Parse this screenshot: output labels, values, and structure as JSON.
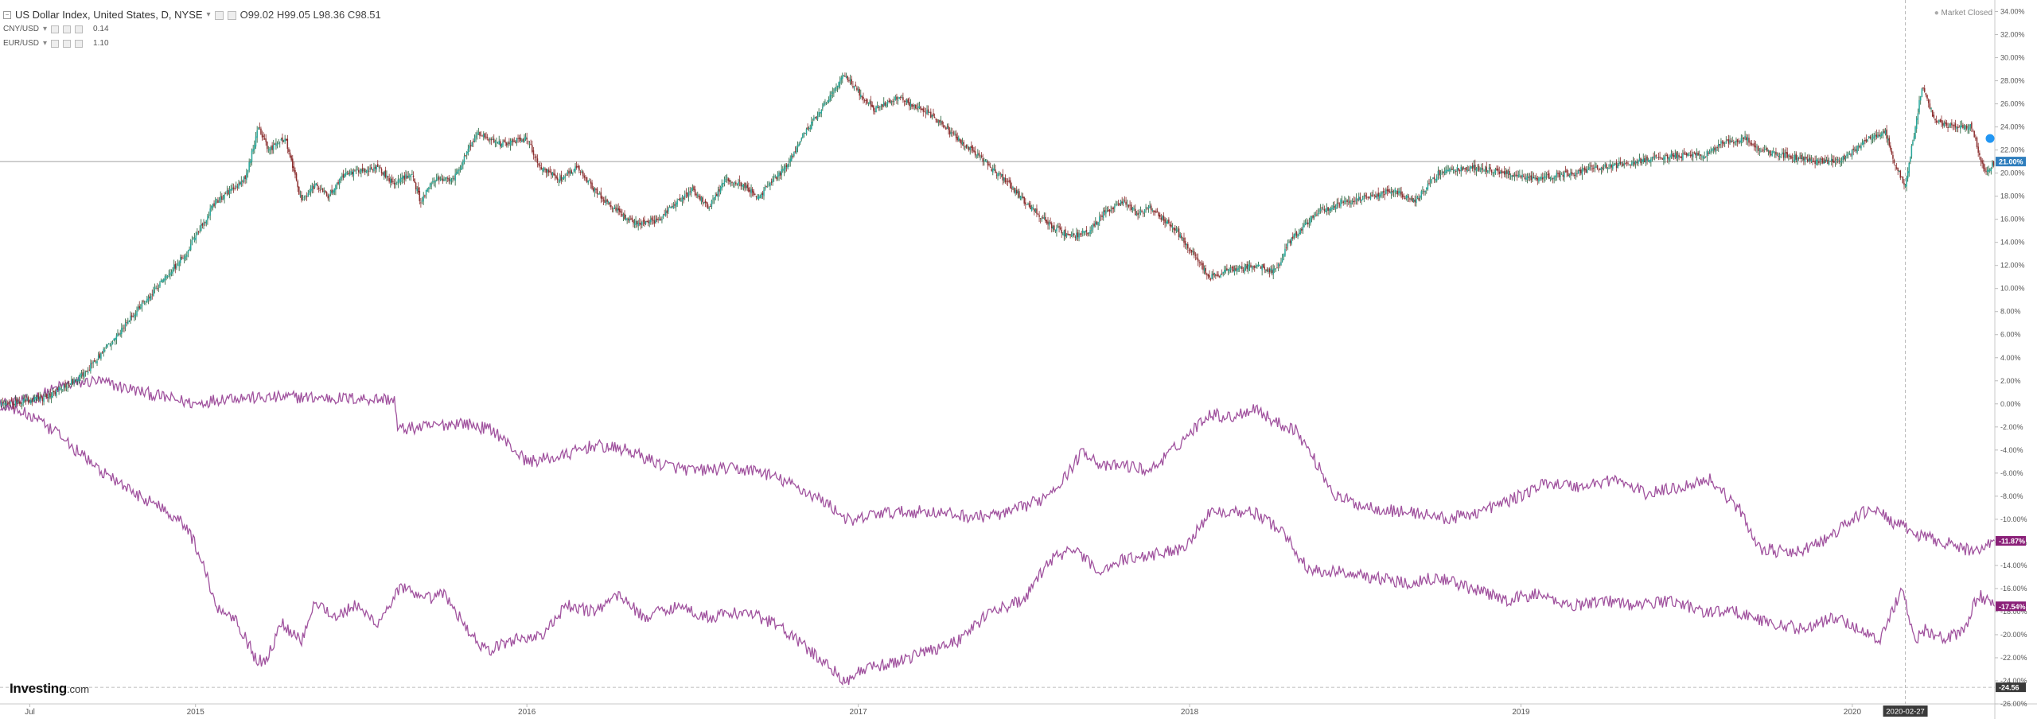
{
  "header": {
    "main_title": "US Dollar Index, United States, D, NYSE",
    "ohlc": [
      {
        "label": "O",
        "value": "99.02"
      },
      {
        "label": "H",
        "value": "99.05"
      },
      {
        "label": "L",
        "value": "98.36"
      },
      {
        "label": "C",
        "value": "98.51"
      }
    ],
    "comparisons": [
      {
        "symbol": "CNY/USD",
        "value": "0.14"
      },
      {
        "symbol": "EUR/USD",
        "value": "1.10"
      }
    ],
    "market_status": "Market Closed"
  },
  "logo": {
    "brand": "Investing",
    "suffix": ".com"
  },
  "colors": {
    "candle_up": "#26a69a",
    "candle_up_dark": "#1f5e36",
    "candle_down": "#8b2e2e",
    "compare_line": "#a0529e",
    "price_line": "#808080",
    "current_label_bg": "#2f7ebd",
    "compare_label_bg": "#8a1f78",
    "crosshair_label_bg": "#3a3a3a",
    "axis_text": "#555555"
  },
  "chart_data": {
    "type": "line",
    "title": "US Dollar Index, United States, D, NYSE",
    "y_unit": "percent change",
    "ylim": [
      -26,
      35
    ],
    "y_ticks": [
      "34.00%",
      "32.00%",
      "30.00%",
      "28.00%",
      "26.00%",
      "24.00%",
      "22.00%",
      "20.00%",
      "18.00%",
      "16.00%",
      "14.00%",
      "12.00%",
      "10.00%",
      "8.00%",
      "6.00%",
      "4.00%",
      "2.00%",
      "0.00%",
      "-2.00%",
      "-4.00%",
      "-6.00%",
      "-8.00%",
      "-10.00%",
      "-12.00%",
      "-14.00%",
      "-16.00%",
      "-18.00%",
      "-20.00%",
      "-22.00%",
      "-24.00%",
      "-26.00%"
    ],
    "x_labels": [
      {
        "label": "Jul",
        "t": 2014.5
      },
      {
        "label": "2015",
        "t": 2015.0
      },
      {
        "label": "2016",
        "t": 2016.0
      },
      {
        "label": "2017",
        "t": 2017.0
      },
      {
        "label": "2018",
        "t": 2018.0
      },
      {
        "label": "2019",
        "t": 2019.0
      },
      {
        "label": "2020",
        "t": 2020.0
      }
    ],
    "x_range": [
      2014.41,
      2020.43
    ],
    "crosshair": {
      "date_label": "2020-02-27",
      "t": 2020.16,
      "value_label": "-24.56",
      "value": -24.56
    },
    "series": [
      {
        "name": "US Dollar Index",
        "style": "candlestick",
        "last_label": "21.00%",
        "last_value": 21.0,
        "points": [
          [
            2014.41,
            0.0
          ],
          [
            2014.55,
            0.5
          ],
          [
            2014.66,
            2.5
          ],
          [
            2014.75,
            5.5
          ],
          [
            2014.85,
            9.0
          ],
          [
            2014.97,
            13.0
          ],
          [
            2015.06,
            17.5
          ],
          [
            2015.15,
            19.5
          ],
          [
            2015.19,
            24.0
          ],
          [
            2015.22,
            22.0
          ],
          [
            2015.27,
            23.0
          ],
          [
            2015.32,
            17.5
          ],
          [
            2015.36,
            19.0
          ],
          [
            2015.4,
            18.0
          ],
          [
            2015.45,
            20.0
          ],
          [
            2015.55,
            20.5
          ],
          [
            2015.6,
            19.0
          ],
          [
            2015.65,
            20.0
          ],
          [
            2015.68,
            17.5
          ],
          [
            2015.72,
            19.5
          ],
          [
            2015.78,
            19.5
          ],
          [
            2015.85,
            23.5
          ],
          [
            2015.92,
            22.5
          ],
          [
            2016.0,
            23.0
          ],
          [
            2016.04,
            20.5
          ],
          [
            2016.1,
            19.5
          ],
          [
            2016.15,
            20.5
          ],
          [
            2016.22,
            18.0
          ],
          [
            2016.28,
            16.5
          ],
          [
            2016.34,
            15.5
          ],
          [
            2016.4,
            16.0
          ],
          [
            2016.45,
            17.5
          ],
          [
            2016.5,
            18.5
          ],
          [
            2016.55,
            17.0
          ],
          [
            2016.6,
            19.5
          ],
          [
            2016.65,
            19.0
          ],
          [
            2016.7,
            18.0
          ],
          [
            2016.78,
            20.5
          ],
          [
            2016.84,
            23.5
          ],
          [
            2016.9,
            26.0
          ],
          [
            2016.96,
            28.5
          ],
          [
            2017.0,
            27.0
          ],
          [
            2017.05,
            25.5
          ],
          [
            2017.12,
            26.5
          ],
          [
            2017.2,
            25.5
          ],
          [
            2017.28,
            23.5
          ],
          [
            2017.38,
            21.0
          ],
          [
            2017.44,
            19.5
          ],
          [
            2017.52,
            17.0
          ],
          [
            2017.58,
            15.5
          ],
          [
            2017.64,
            14.5
          ],
          [
            2017.7,
            15.0
          ],
          [
            2017.74,
            16.5
          ],
          [
            2017.8,
            17.5
          ],
          [
            2017.84,
            16.5
          ],
          [
            2017.88,
            17.0
          ],
          [
            2017.96,
            15.0
          ],
          [
            2018.06,
            11.0
          ],
          [
            2018.12,
            11.5
          ],
          [
            2018.2,
            12.0
          ],
          [
            2018.26,
            11.5
          ],
          [
            2018.3,
            14.0
          ],
          [
            2018.38,
            16.5
          ],
          [
            2018.46,
            17.5
          ],
          [
            2018.55,
            18.0
          ],
          [
            2018.62,
            18.5
          ],
          [
            2018.68,
            17.5
          ],
          [
            2018.75,
            20.0
          ],
          [
            2018.85,
            20.5
          ],
          [
            2018.95,
            20.0
          ],
          [
            2019.05,
            19.5
          ],
          [
            2019.15,
            20.0
          ],
          [
            2019.25,
            20.5
          ],
          [
            2019.35,
            21.0
          ],
          [
            2019.45,
            21.5
          ],
          [
            2019.55,
            21.5
          ],
          [
            2019.6,
            22.5
          ],
          [
            2019.68,
            23.0
          ],
          [
            2019.72,
            22.0
          ],
          [
            2019.8,
            21.5
          ],
          [
            2019.88,
            21.0
          ],
          [
            2019.96,
            21.0
          ],
          [
            2020.05,
            23.0
          ],
          [
            2020.1,
            23.5
          ],
          [
            2020.13,
            20.5
          ],
          [
            2020.16,
            19.0
          ],
          [
            2020.19,
            24.0
          ],
          [
            2020.21,
            27.5
          ],
          [
            2020.25,
            24.5
          ],
          [
            2020.3,
            24.0
          ],
          [
            2020.36,
            24.0
          ],
          [
            2020.4,
            20.0
          ],
          [
            2020.43,
            21.0
          ]
        ]
      },
      {
        "name": "CNY/USD",
        "style": "line",
        "last_label": "-11.87%",
        "last_value": -11.87,
        "points": [
          [
            2014.41,
            0.0
          ],
          [
            2014.5,
            0.3
          ],
          [
            2014.6,
            1.6
          ],
          [
            2014.7,
            2.0
          ],
          [
            2014.8,
            1.3
          ],
          [
            2014.9,
            0.6
          ],
          [
            2015.0,
            0.0
          ],
          [
            2015.1,
            0.6
          ],
          [
            2015.2,
            0.5
          ],
          [
            2015.3,
            0.6
          ],
          [
            2015.4,
            0.5
          ],
          [
            2015.6,
            0.4
          ],
          [
            2015.61,
            -2.2
          ],
          [
            2015.7,
            -2.0
          ],
          [
            2015.8,
            -1.6
          ],
          [
            2015.9,
            -2.3
          ],
          [
            2016.0,
            -5.0
          ],
          [
            2016.1,
            -4.6
          ],
          [
            2016.2,
            -3.6
          ],
          [
            2016.3,
            -4.0
          ],
          [
            2016.4,
            -5.2
          ],
          [
            2016.5,
            -5.8
          ],
          [
            2016.6,
            -5.6
          ],
          [
            2016.7,
            -5.8
          ],
          [
            2016.8,
            -7.0
          ],
          [
            2016.9,
            -8.5
          ],
          [
            2016.98,
            -10.3
          ],
          [
            2017.05,
            -9.5
          ],
          [
            2017.2,
            -9.3
          ],
          [
            2017.35,
            -9.8
          ],
          [
            2017.45,
            -9.5
          ],
          [
            2017.55,
            -8.3
          ],
          [
            2017.62,
            -6.5
          ],
          [
            2017.68,
            -4.0
          ],
          [
            2017.74,
            -5.5
          ],
          [
            2017.8,
            -5.3
          ],
          [
            2017.88,
            -5.8
          ],
          [
            2017.95,
            -4.0
          ],
          [
            2018.06,
            -0.8
          ],
          [
            2018.12,
            -1.2
          ],
          [
            2018.2,
            -0.3
          ],
          [
            2018.25,
            -1.5
          ],
          [
            2018.32,
            -2.2
          ],
          [
            2018.38,
            -5.0
          ],
          [
            2018.44,
            -8.0
          ],
          [
            2018.52,
            -8.8
          ],
          [
            2018.62,
            -9.3
          ],
          [
            2018.7,
            -9.5
          ],
          [
            2018.78,
            -10.0
          ],
          [
            2018.88,
            -9.3
          ],
          [
            2018.98,
            -8.2
          ],
          [
            2019.08,
            -6.8
          ],
          [
            2019.18,
            -7.2
          ],
          [
            2019.28,
            -6.5
          ],
          [
            2019.38,
            -7.8
          ],
          [
            2019.48,
            -7.2
          ],
          [
            2019.57,
            -6.5
          ],
          [
            2019.66,
            -9.2
          ],
          [
            2019.72,
            -12.5
          ],
          [
            2019.82,
            -13.0
          ],
          [
            2019.92,
            -11.8
          ],
          [
            2020.0,
            -10.0
          ],
          [
            2020.06,
            -9.0
          ],
          [
            2020.12,
            -10.2
          ],
          [
            2020.2,
            -11.4
          ],
          [
            2020.28,
            -12.0
          ],
          [
            2020.36,
            -12.8
          ],
          [
            2020.43,
            -11.87
          ]
        ]
      },
      {
        "name": "EUR/USD",
        "style": "line",
        "last_label": "-17.54%",
        "last_value": -17.54,
        "points": [
          [
            2014.41,
            0.0
          ],
          [
            2014.5,
            -1.0
          ],
          [
            2014.6,
            -3.0
          ],
          [
            2014.7,
            -5.5
          ],
          [
            2014.8,
            -7.5
          ],
          [
            2014.9,
            -9.0
          ],
          [
            2014.97,
            -10.5
          ],
          [
            2015.02,
            -13.5
          ],
          [
            2015.06,
            -17.5
          ],
          [
            2015.12,
            -18.5
          ],
          [
            2015.18,
            -22.0
          ],
          [
            2015.21,
            -22.5
          ],
          [
            2015.26,
            -19.0
          ],
          [
            2015.32,
            -20.5
          ],
          [
            2015.36,
            -17.0
          ],
          [
            2015.42,
            -18.5
          ],
          [
            2015.48,
            -17.5
          ],
          [
            2015.55,
            -19.0
          ],
          [
            2015.62,
            -15.8
          ],
          [
            2015.68,
            -17.0
          ],
          [
            2015.75,
            -16.5
          ],
          [
            2015.82,
            -19.5
          ],
          [
            2015.88,
            -21.5
          ],
          [
            2015.95,
            -20.5
          ],
          [
            2016.05,
            -20.0
          ],
          [
            2016.12,
            -17.5
          ],
          [
            2016.2,
            -18.0
          ],
          [
            2016.28,
            -16.5
          ],
          [
            2016.35,
            -18.5
          ],
          [
            2016.45,
            -17.5
          ],
          [
            2016.55,
            -18.5
          ],
          [
            2016.65,
            -18.0
          ],
          [
            2016.75,
            -19.0
          ],
          [
            2016.88,
            -22.0
          ],
          [
            2016.96,
            -24.0
          ],
          [
            2017.02,
            -23.0
          ],
          [
            2017.1,
            -22.5
          ],
          [
            2017.2,
            -21.5
          ],
          [
            2017.3,
            -20.5
          ],
          [
            2017.4,
            -18.0
          ],
          [
            2017.5,
            -17.0
          ],
          [
            2017.58,
            -13.5
          ],
          [
            2017.65,
            -12.5
          ],
          [
            2017.72,
            -14.5
          ],
          [
            2017.8,
            -13.5
          ],
          [
            2017.9,
            -13.0
          ],
          [
            2017.98,
            -12.5
          ],
          [
            2018.06,
            -9.5
          ],
          [
            2018.12,
            -9.2
          ],
          [
            2018.2,
            -9.5
          ],
          [
            2018.28,
            -11.0
          ],
          [
            2018.36,
            -14.5
          ],
          [
            2018.44,
            -14.5
          ],
          [
            2018.55,
            -15.0
          ],
          [
            2018.65,
            -15.5
          ],
          [
            2018.75,
            -15.0
          ],
          [
            2018.85,
            -16.0
          ],
          [
            2018.95,
            -17.0
          ],
          [
            2019.05,
            -16.5
          ],
          [
            2019.15,
            -17.5
          ],
          [
            2019.25,
            -17.0
          ],
          [
            2019.35,
            -17.5
          ],
          [
            2019.45,
            -17.0
          ],
          [
            2019.55,
            -18.0
          ],
          [
            2019.65,
            -18.0
          ],
          [
            2019.75,
            -19.0
          ],
          [
            2019.85,
            -19.5
          ],
          [
            2019.95,
            -18.5
          ],
          [
            2020.02,
            -19.5
          ],
          [
            2020.08,
            -20.5
          ],
          [
            2020.12,
            -18.0
          ],
          [
            2020.15,
            -16.0
          ],
          [
            2020.19,
            -20.5
          ],
          [
            2020.22,
            -19.5
          ],
          [
            2020.28,
            -20.5
          ],
          [
            2020.34,
            -19.5
          ],
          [
            2020.38,
            -16.5
          ],
          [
            2020.43,
            -17.54
          ]
        ]
      }
    ]
  }
}
